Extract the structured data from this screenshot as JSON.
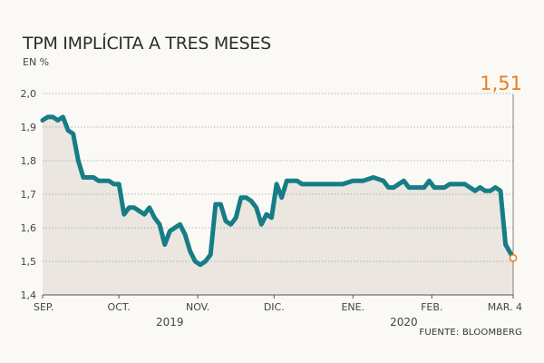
{
  "title": "TPM IMPLÍCITA A TRES MESES",
  "subtitle": "EN %",
  "source": "FUENTE: BLOOMBERG",
  "colors": {
    "line": "#167d86",
    "area": "#ebe6e0",
    "highlight": "#f07b1e",
    "background": "#fbf9f5"
  },
  "chart_data": {
    "type": "area",
    "title": "TPM IMPLÍCITA A TRES MESES",
    "ylabel": "EN %",
    "ylim": [
      1.4,
      2.0
    ],
    "yticks": [
      "2,0",
      "1,9",
      "1,8",
      "1,7",
      "1,6",
      "1,5",
      "1,4"
    ],
    "ytick_values": [
      2.0,
      1.9,
      1.8,
      1.7,
      1.6,
      1.5,
      1.4
    ],
    "xlim": [
      "2019-09-01",
      "2020-03-04"
    ],
    "xticks": [
      {
        "label": "SEP.",
        "date": "2019-09-01"
      },
      {
        "label": "OCT.",
        "date": "2019-10-01"
      },
      {
        "label": "NOV.",
        "date": "2019-11-01"
      },
      {
        "label": "DIC.",
        "date": "2019-12-01"
      },
      {
        "label": "ENE.",
        "date": "2020-01-01"
      },
      {
        "label": "FEB.",
        "date": "2020-02-01"
      },
      {
        "label": "MAR. 4",
        "date": "2020-03-04"
      }
    ],
    "years": [
      {
        "label": "2019",
        "date": "2019-10-21"
      },
      {
        "label": "2020",
        "date": "2020-01-21"
      }
    ],
    "end_label": "1,51",
    "grid": "horizontal",
    "series": [
      {
        "x": [
          "2019-09-01",
          "2019-09-03",
          "2019-09-05",
          "2019-09-07",
          "2019-09-09",
          "2019-09-11",
          "2019-09-13",
          "2019-09-15",
          "2019-09-17",
          "2019-09-19",
          "2019-09-21",
          "2019-09-23",
          "2019-09-25",
          "2019-09-27",
          "2019-09-29",
          "2019-10-01",
          "2019-10-03",
          "2019-10-05",
          "2019-10-07",
          "2019-10-09",
          "2019-10-11",
          "2019-10-13",
          "2019-10-15",
          "2019-10-17",
          "2019-10-19",
          "2019-10-21",
          "2019-10-23",
          "2019-10-25",
          "2019-10-27",
          "2019-10-29",
          "2019-10-31",
          "2019-11-02",
          "2019-11-04",
          "2019-11-06",
          "2019-11-08",
          "2019-11-10",
          "2019-11-12",
          "2019-11-14",
          "2019-11-16",
          "2019-11-18",
          "2019-11-20",
          "2019-11-22",
          "2019-11-24",
          "2019-11-26",
          "2019-11-28",
          "2019-11-30",
          "2019-12-02",
          "2019-12-04",
          "2019-12-06",
          "2019-12-08",
          "2019-12-10",
          "2019-12-12",
          "2019-12-16",
          "2019-12-20",
          "2019-12-24",
          "2019-12-28",
          "2020-01-01",
          "2020-01-05",
          "2020-01-09",
          "2020-01-13",
          "2020-01-15",
          "2020-01-17",
          "2020-01-19",
          "2020-01-21",
          "2020-01-23",
          "2020-01-25",
          "2020-01-27",
          "2020-01-29",
          "2020-01-31",
          "2020-02-02",
          "2020-02-04",
          "2020-02-06",
          "2020-02-08",
          "2020-02-10",
          "2020-02-12",
          "2020-02-14",
          "2020-02-16",
          "2020-02-18",
          "2020-02-20",
          "2020-02-22",
          "2020-02-24",
          "2020-02-26",
          "2020-02-28",
          "2020-03-01",
          "2020-03-04"
        ],
        "values": [
          1.92,
          1.93,
          1.93,
          1.92,
          1.93,
          1.89,
          1.88,
          1.8,
          1.75,
          1.75,
          1.75,
          1.74,
          1.74,
          1.74,
          1.73,
          1.73,
          1.64,
          1.66,
          1.66,
          1.65,
          1.64,
          1.66,
          1.63,
          1.61,
          1.55,
          1.59,
          1.6,
          1.61,
          1.58,
          1.53,
          1.5,
          1.49,
          1.5,
          1.52,
          1.67,
          1.67,
          1.62,
          1.61,
          1.63,
          1.69,
          1.69,
          1.68,
          1.66,
          1.61,
          1.64,
          1.63,
          1.73,
          1.69,
          1.74,
          1.74,
          1.74,
          1.73,
          1.73,
          1.73,
          1.73,
          1.73,
          1.74,
          1.74,
          1.75,
          1.74,
          1.72,
          1.72,
          1.73,
          1.74,
          1.72,
          1.72,
          1.72,
          1.72,
          1.74,
          1.72,
          1.72,
          1.72,
          1.73,
          1.73,
          1.73,
          1.73,
          1.72,
          1.71,
          1.72,
          1.71,
          1.71,
          1.72,
          1.71,
          1.55,
          1.51
        ]
      }
    ]
  }
}
